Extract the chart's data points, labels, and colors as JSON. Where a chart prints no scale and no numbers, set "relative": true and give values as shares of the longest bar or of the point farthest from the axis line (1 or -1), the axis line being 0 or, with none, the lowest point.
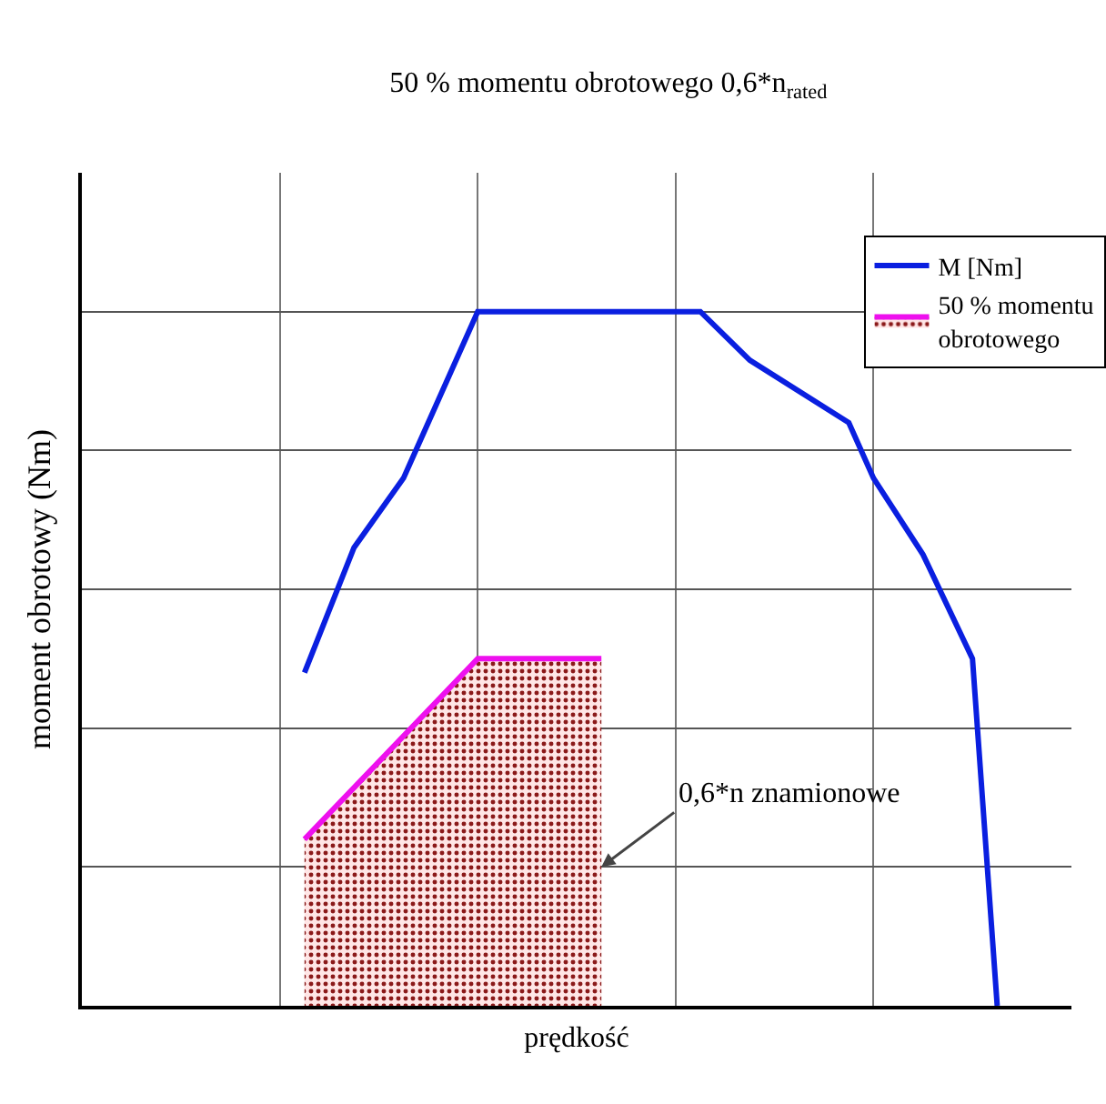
{
  "chart_data": {
    "type": "line",
    "title": "50 % momentu obrotowego 0,6*n$_{rated}$",
    "xlabel": "prędkość",
    "ylabel": "moment obrotowy (Nm)",
    "relative": true,
    "grid": true,
    "legend": "top right",
    "marker": "none",
    "categories": [
      null,
      null,
      null,
      null,
      null,
      null,
      null,
      null,
      null,
      null,
      null,
      null,
      null,
      null,
      null,
      null,
      null,
      null,
      null,
      null,
      null,
      null,
      null,
      null,
      null,
      null,
      null,
      null,
      null,
      null,
      null,
      null,
      null,
      null,
      null,
      null,
      null,
      null,
      null,
      null,
      null
    ],
    "series": [
      {
        "name": "M [Nm]",
        "color": "#0a1fe0",
        "values": [
          null,
          null,
          null,
          null,
          null,
          null,
          null,
          null,
          null,
          0.48,
          null,
          0.66,
          null,
          0.76,
          null,
          null,
          1,
          null,
          null,
          null,
          null,
          null,
          null,
          null,
          null,
          1,
          null,
          0.93,
          null,
          null,
          null,
          0.84,
          0.76,
          null,
          0.65,
          null,
          0.5,
          0,
          null,
          null,
          null
        ]
      },
      {
        "name": "50 % momentu obrotowego",
        "type": "area",
        "color": "#ee10ee",
        "values": [
          null,
          null,
          null,
          null,
          null,
          null,
          null,
          null,
          null,
          0.24,
          null,
          null,
          null,
          null,
          null,
          null,
          0.5,
          null,
          null,
          null,
          null,
          0.5,
          null,
          null,
          null,
          null,
          null,
          null,
          null,
          null,
          null,
          null,
          null,
          null,
          null,
          null,
          null,
          null,
          null,
          null,
          null
        ]
      }
    ],
    "annotations": [
      "0,6*n znamionowe"
    ]
  }
}
